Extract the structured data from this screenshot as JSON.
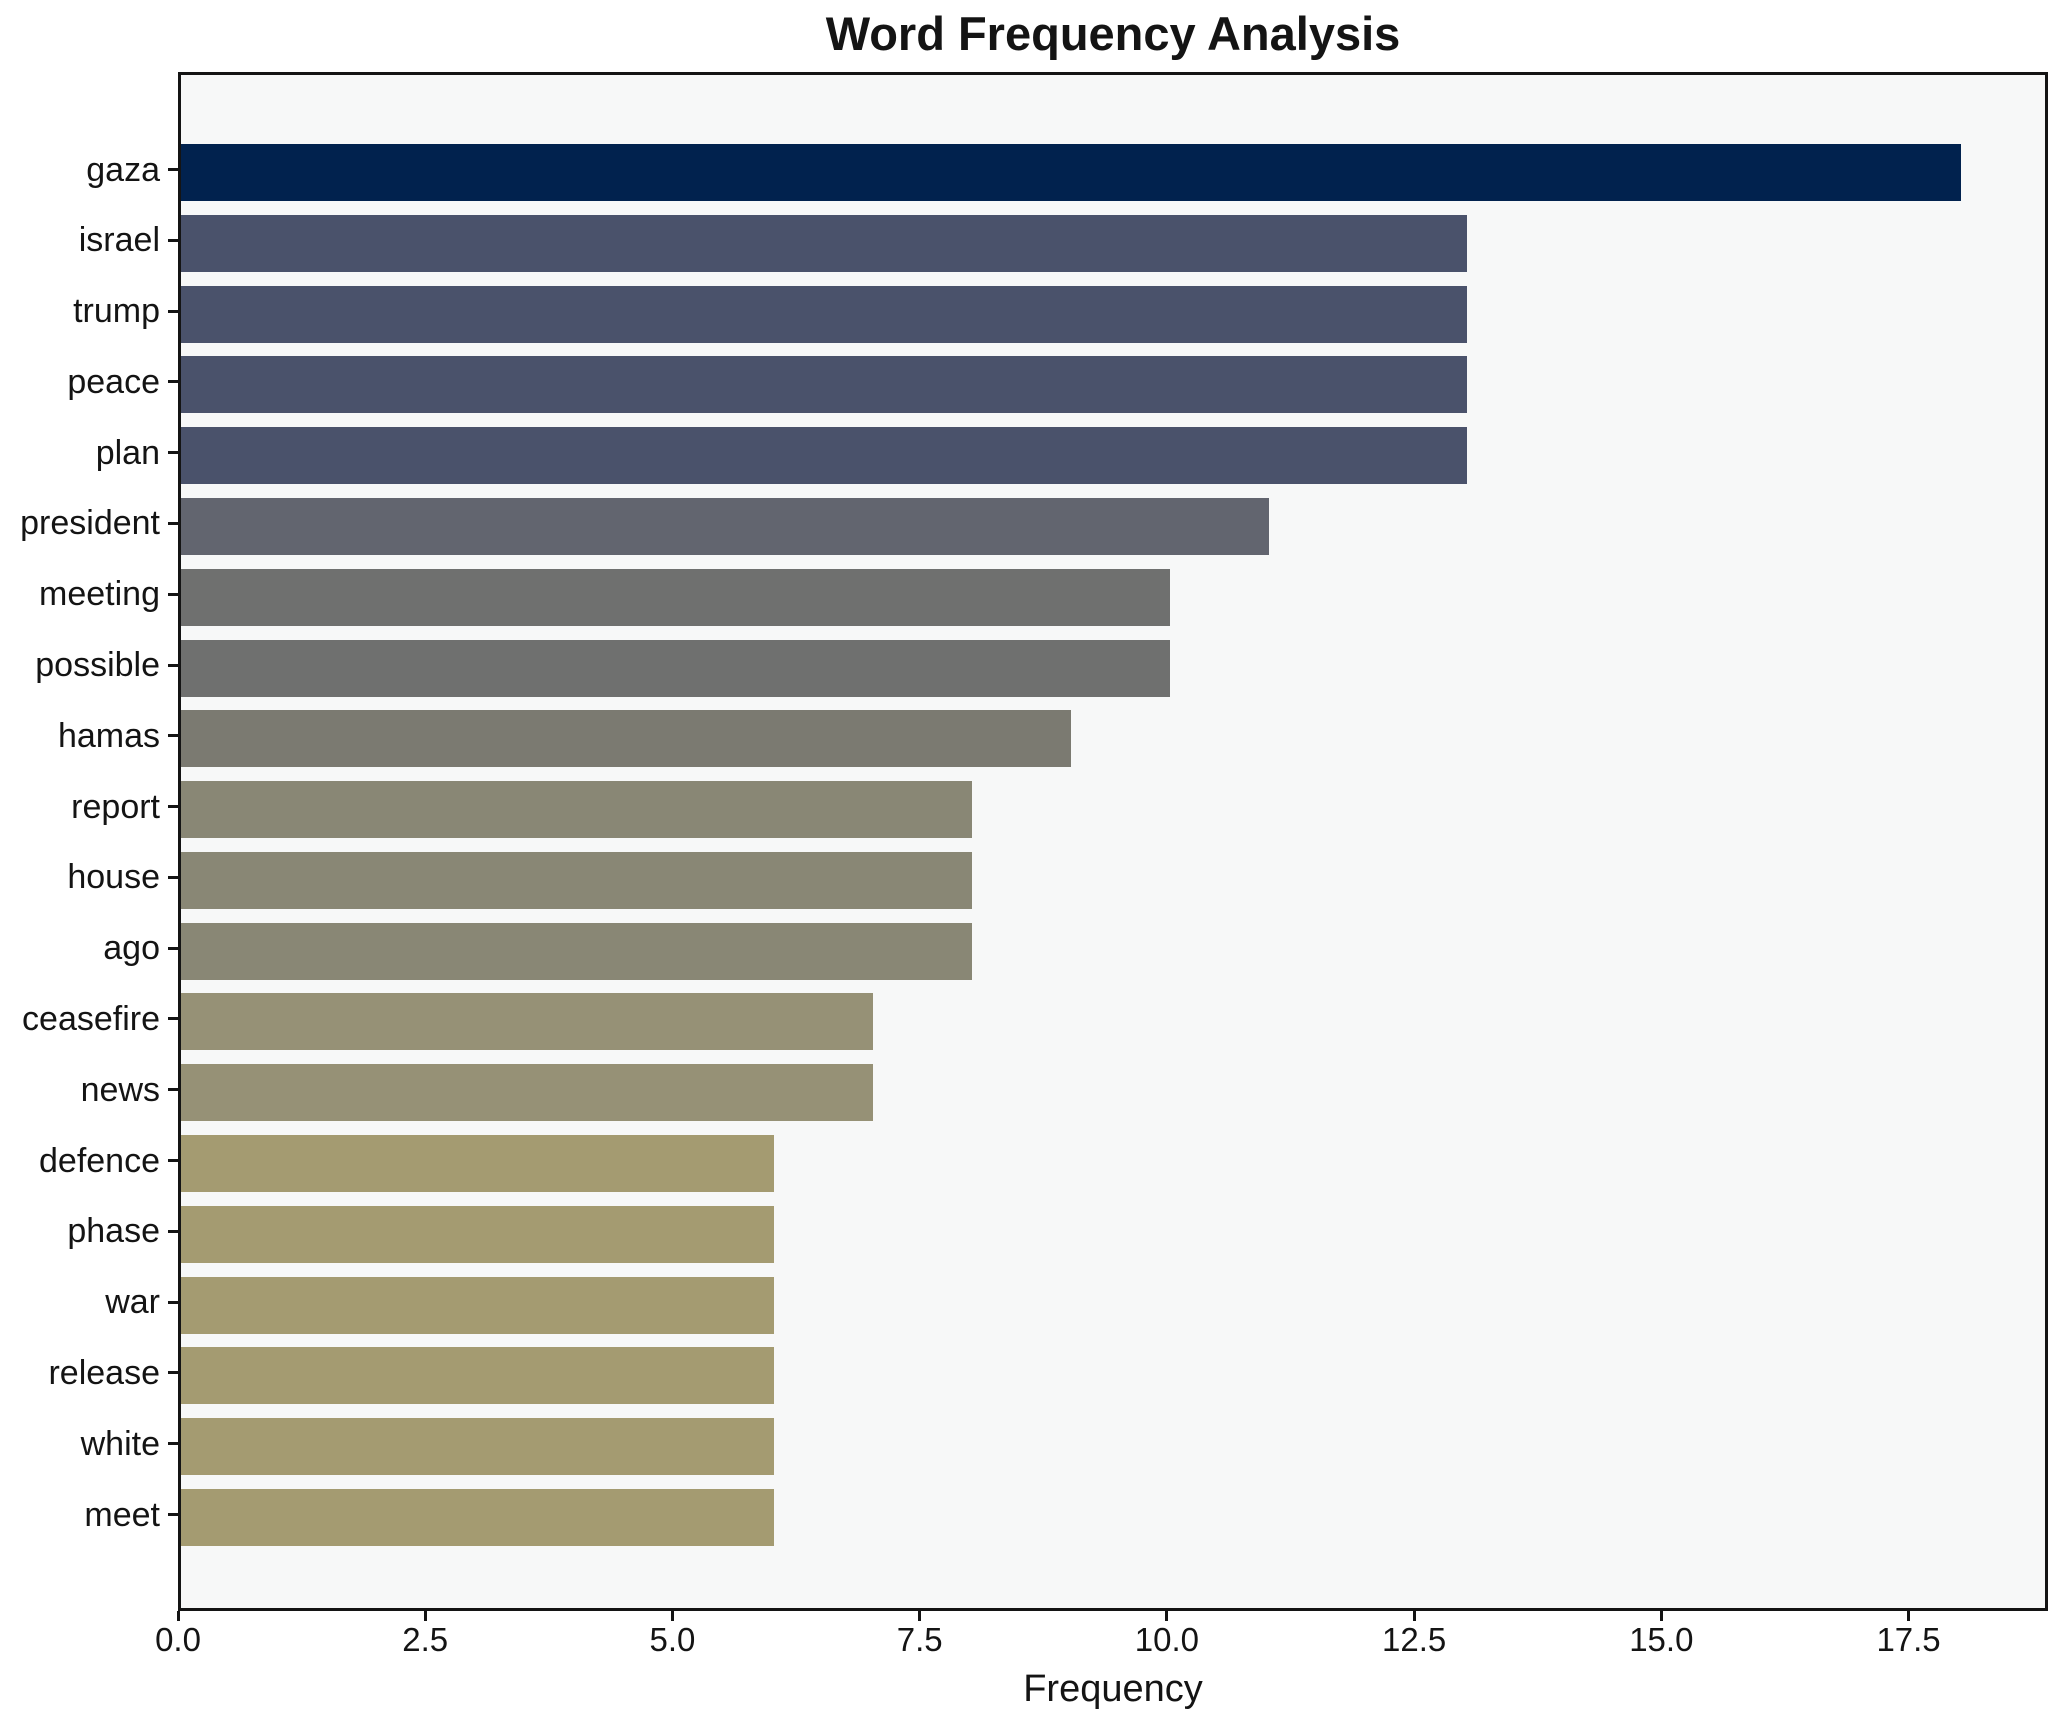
{
  "chart_data": {
    "type": "bar",
    "orientation": "horizontal",
    "title": "Word Frequency Analysis",
    "xlabel": "Frequency",
    "ylabel": "",
    "categories": [
      "gaza",
      "israel",
      "trump",
      "peace",
      "plan",
      "president",
      "meeting",
      "possible",
      "hamas",
      "report",
      "house",
      "ago",
      "ceasefire",
      "news",
      "defence",
      "phase",
      "war",
      "release",
      "white",
      "meet"
    ],
    "values": [
      18,
      13,
      13,
      13,
      13,
      11,
      10,
      10,
      9,
      8,
      8,
      8,
      7,
      7,
      6,
      6,
      6,
      6,
      6,
      6
    ],
    "bar_colors": [
      "#01224e",
      "#4a526b",
      "#4a526b",
      "#4a526b",
      "#4a526b",
      "#62656f",
      "#6f706f",
      "#6f706f",
      "#7b7a71",
      "#898775",
      "#898775",
      "#898775",
      "#969176",
      "#969176",
      "#a49b71",
      "#a49b71",
      "#a49b71",
      "#a49b71",
      "#a49b71",
      "#a49b71"
    ],
    "x_ticks": [
      {
        "value": 0,
        "label": "0.0"
      },
      {
        "value": 2.5,
        "label": "2.5"
      },
      {
        "value": 5,
        "label": "5.0"
      },
      {
        "value": 7.5,
        "label": "7.5"
      },
      {
        "value": 10,
        "label": "10.0"
      },
      {
        "value": 12.5,
        "label": "12.5"
      },
      {
        "value": 15,
        "label": "15.0"
      },
      {
        "value": 17.5,
        "label": "17.5"
      }
    ],
    "xlim": [
      0,
      18.91
    ],
    "grid": false,
    "legend": null,
    "plot_background": "#f7f8f8",
    "figure_background": "#ffffff",
    "spine_color": "#141414",
    "text_color": "#141414"
  }
}
